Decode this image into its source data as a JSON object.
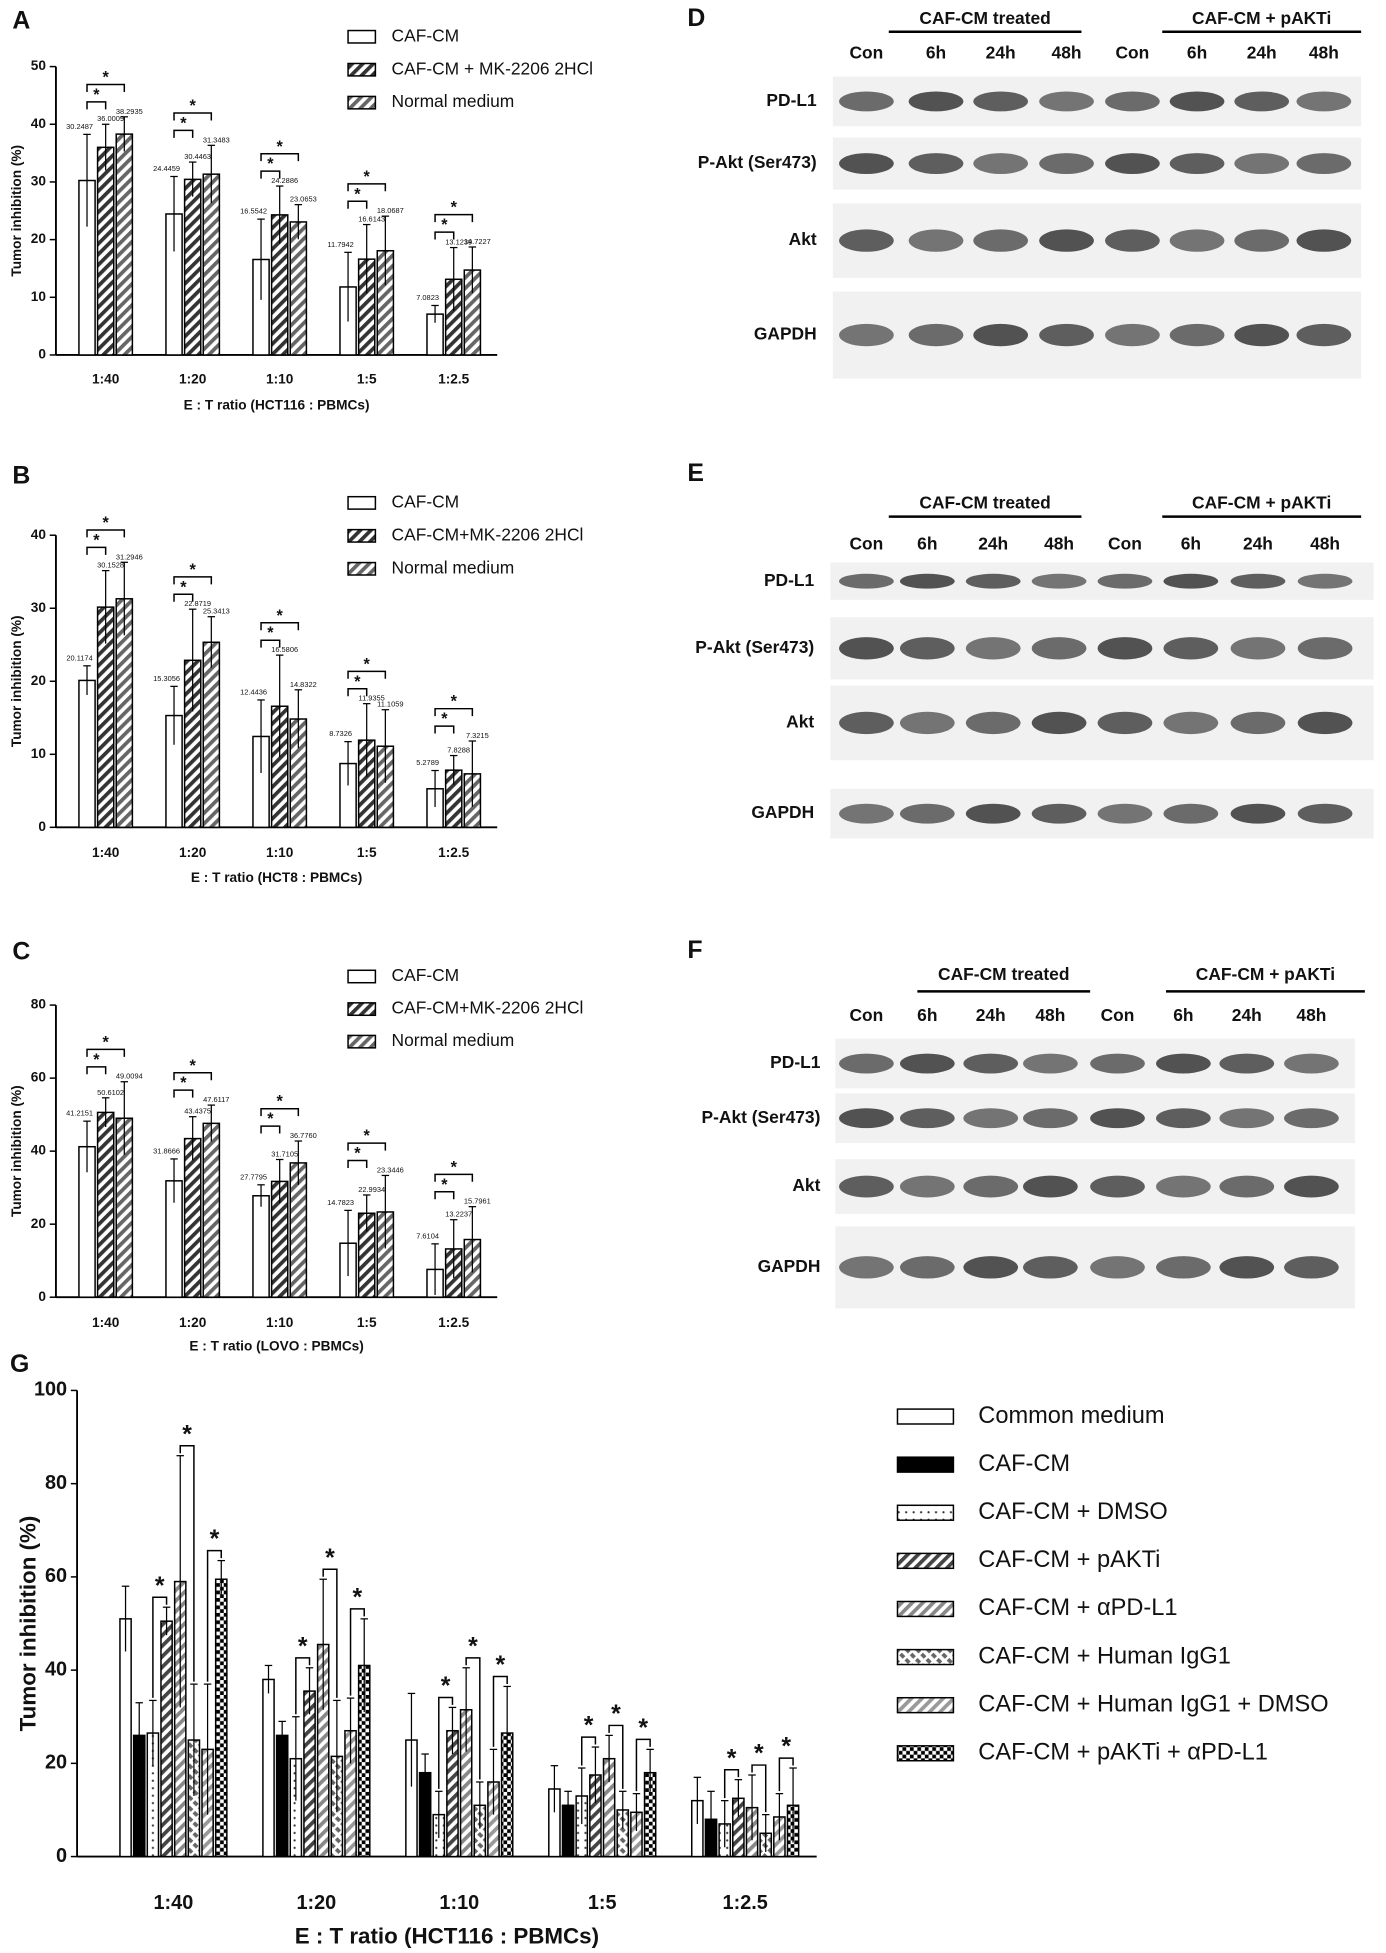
{
  "chart_data": [
    {
      "type": "bar",
      "panel_label": "A",
      "x_label": "E : T ratio (HCT116 : PBMCs)",
      "y_label": "Tumor inhibition (%)",
      "categories": [
        "1:40",
        "1:20",
        "1:10",
        "1:5",
        "1:2.5"
      ],
      "series": [
        {
          "name": "CAF-CM",
          "color": "#ffffff",
          "pattern": "none",
          "values": [
            30.2487,
            24.4459,
            16.5542,
            11.7942,
            7.0823
          ],
          "errors": [
            8,
            6.5,
            7,
            6,
            1.5
          ]
        },
        {
          "name": "CAF-CM + MK-2206 2HCl",
          "color": "#333333",
          "pattern": "hatch",
          "values": [
            36.0009,
            30.4463,
            24.2886,
            16.6143,
            13.1239
          ],
          "errors": [
            4,
            3,
            5,
            6,
            5.5
          ]
        },
        {
          "name": "Normal medium",
          "color": "#666666",
          "pattern": "hatch",
          "values": [
            38.2935,
            31.3483,
            23.0653,
            18.0687,
            14.7227
          ],
          "errors": [
            3,
            5,
            3,
            6,
            4
          ]
        }
      ],
      "comparisons": [
        [
          0,
          1
        ],
        [
          0,
          2
        ]
      ],
      "significance_label": "*",
      "ylim": [
        0,
        50
      ],
      "yticks": [
        0,
        10,
        20,
        30,
        40,
        50
      ],
      "grid": false
    },
    {
      "type": "bar",
      "panel_label": "B",
      "x_label": "E : T ratio (HCT8 : PBMCs)",
      "y_label": "Tumor inhibition (%)",
      "categories": [
        "1:40",
        "1:20",
        "1:10",
        "1:5",
        "1:2.5"
      ],
      "series": [
        {
          "name": "CAF-CM",
          "color": "#ffffff",
          "pattern": "none",
          "values": [
            20.1174,
            15.3056,
            12.4436,
            8.7326,
            5.2789
          ],
          "errors": [
            2,
            4,
            5,
            3,
            2.5
          ]
        },
        {
          "name": "CAF-CM+MK-2206 2HCl",
          "color": "#333333",
          "pattern": "hatch",
          "values": [
            30.1528,
            22.8719,
            16.5806,
            11.9355,
            7.8288
          ],
          "errors": [
            5,
            7,
            7,
            5,
            2
          ]
        },
        {
          "name": "Normal medium",
          "color": "#666666",
          "pattern": "hatch",
          "values": [
            31.2946,
            25.3413,
            14.8322,
            11.1059,
            7.3215
          ],
          "errors": [
            5,
            3.5,
            4,
            5,
            4.5
          ]
        }
      ],
      "comparisons": [
        [
          0,
          1
        ],
        [
          0,
          2
        ]
      ],
      "significance_label": "*",
      "ylim": [
        0,
        40
      ],
      "yticks": [
        0,
        10,
        20,
        30,
        40
      ],
      "grid": false
    },
    {
      "type": "bar",
      "panel_label": "C",
      "x_label": "E : T ratio (LOVO : PBMCs)",
      "y_label": "Tumor inhibition (%)",
      "categories": [
        "1:40",
        "1:20",
        "1:10",
        "1:5",
        "1:2.5"
      ],
      "series": [
        {
          "name": "CAF-CM",
          "color": "#ffffff",
          "pattern": "none",
          "values": [
            41.2151,
            31.8666,
            27.7795,
            14.7823,
            7.6104
          ],
          "errors": [
            7,
            6,
            3,
            9,
            7
          ]
        },
        {
          "name": "CAF-CM+MK-2206 2HCl",
          "color": "#333333",
          "pattern": "hatch",
          "values": [
            50.6102,
            43.4375,
            31.7105,
            22.9934,
            13.2237
          ],
          "errors": [
            4,
            6,
            6,
            5,
            8
          ]
        },
        {
          "name": "Normal medium",
          "color": "#666666",
          "pattern": "hatch",
          "values": [
            49.0094,
            47.6117,
            36.776,
            23.3446,
            15.7961
          ],
          "value_labels": [
            "49.0094",
            "47.6117",
            "36.7760",
            "23.3446",
            "15.7961"
          ],
          "errors": [
            10,
            5,
            6,
            10,
            9
          ]
        }
      ],
      "comparisons": [
        [
          0,
          1
        ],
        [
          0,
          2
        ]
      ],
      "significance_label": "*",
      "ylim": [
        0,
        80
      ],
      "yticks": [
        0,
        20,
        40,
        60,
        80
      ],
      "grid": false
    },
    {
      "type": "bar",
      "panel_label": "G",
      "x_label": "E : T ratio (HCT116 : PBMCs)",
      "y_label": "Tumor inhibition (%)",
      "categories": [
        "1:40",
        "1:20",
        "1:10",
        "1:5",
        "1:2.5"
      ],
      "series": [
        {
          "name": "Common medium",
          "color": "#ffffff",
          "pattern": "none",
          "values": [
            51,
            38,
            25,
            14.5,
            12
          ],
          "errors": [
            7,
            3,
            10,
            5,
            5
          ]
        },
        {
          "name": "CAF-CM",
          "color": "#000000",
          "pattern": "solid",
          "values": [
            26,
            26,
            18,
            11,
            8
          ],
          "errors": [
            7,
            3,
            4,
            3,
            6
          ]
        },
        {
          "name": "CAF-CM + DMSO",
          "color": "#333333",
          "pattern": "dots",
          "values": [
            26.5,
            21,
            9,
            13,
            7
          ],
          "errors": [
            7,
            9,
            5,
            6,
            5
          ]
        },
        {
          "name": "CAF-CM + pAKTi",
          "color": "#444444",
          "pattern": "hatch",
          "values": [
            50.5,
            35.5,
            27,
            17.5,
            12.5
          ],
          "errors": [
            3,
            5,
            5,
            6,
            4
          ]
        },
        {
          "name": "CAF-CM + αPD-L1",
          "color": "#888888",
          "pattern": "hatch",
          "values": [
            59,
            45.5,
            31.5,
            21,
            10.5
          ],
          "errors": [
            27,
            14,
            9,
            5,
            7
          ]
        },
        {
          "name": "CAF-CM + Human IgG1",
          "color": "#666666",
          "pattern": "dash",
          "values": [
            25,
            21.5,
            11,
            10,
            5
          ],
          "errors": [
            12,
            12,
            5,
            4,
            4
          ]
        },
        {
          "name": "CAF-CM + Human IgG1 + DMSO",
          "color": "#999999",
          "pattern": "hatch",
          "values": [
            23,
            27,
            16,
            9.5,
            8.5
          ],
          "errors": [
            14,
            7,
            7,
            4,
            5
          ]
        },
        {
          "name": "CAF-CM + pAKTi + αPD-L1",
          "color": "#000000",
          "pattern": "checker",
          "values": [
            59.5,
            41,
            26.5,
            18,
            11
          ],
          "errors": [
            4,
            10,
            10,
            5,
            8
          ]
        }
      ],
      "comparisons": [
        [
          2,
          3
        ],
        [
          4,
          5
        ],
        [
          6,
          7
        ]
      ],
      "significance_label": "*",
      "ylim": [
        0,
        100
      ],
      "yticks": [
        0,
        20,
        40,
        60,
        80,
        100
      ],
      "grid": false
    }
  ],
  "blots": [
    {
      "panel_label": "D",
      "groups": [
        "CAF-CM treated",
        "CAF-CM + pAKTi"
      ],
      "lanes": [
        "Con",
        "6h",
        "24h",
        "48h",
        "Con",
        "6h",
        "24h",
        "48h"
      ],
      "rows": [
        "PD-L1",
        "P-Akt (Ser473)",
        "Akt",
        "GAPDH"
      ]
    },
    {
      "panel_label": "E",
      "groups": [
        "CAF-CM treated",
        "CAF-CM + pAKTi"
      ],
      "lanes": [
        "Con",
        "6h",
        "24h",
        "48h",
        "Con",
        "6h",
        "24h",
        "48h"
      ],
      "rows": [
        "PD-L1",
        "P-Akt (Ser473)",
        "Akt",
        "GAPDH"
      ]
    },
    {
      "panel_label": "F",
      "groups": [
        "CAF-CM treated",
        "CAF-CM + pAKTi"
      ],
      "lanes": [
        "Con",
        "6h",
        "24h",
        "48h",
        "Con",
        "6h",
        "24h",
        "48h"
      ],
      "rows": [
        "PD-L1",
        "P-Akt (Ser473)",
        "Akt",
        "GAPDH"
      ]
    }
  ]
}
